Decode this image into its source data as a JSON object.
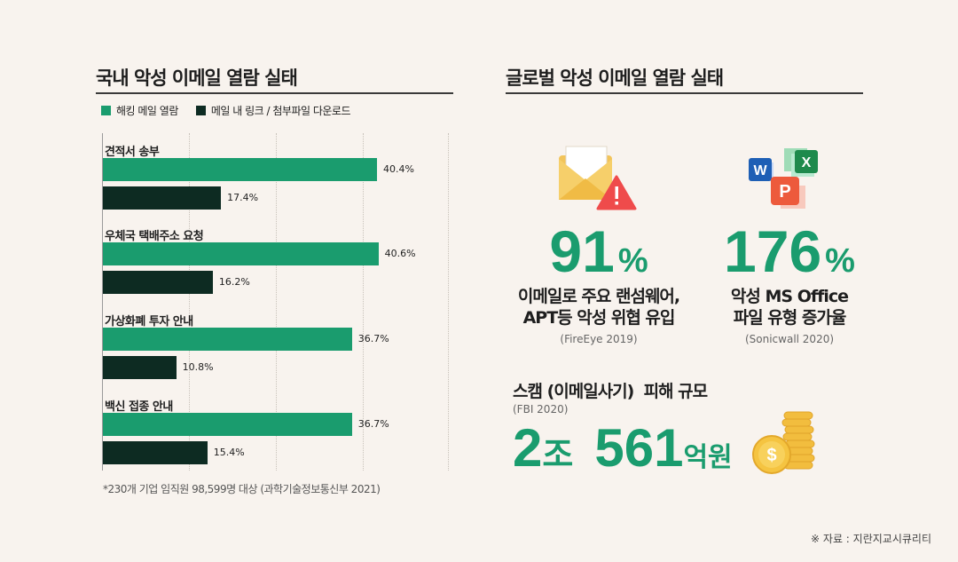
{
  "left": {
    "title": "국내 악성 이메일 열람 실태",
    "footnote": "*230개 기업 임직원 98,599명 대상 (과학기술정보통신부 2021)"
  },
  "right": {
    "title": "글로벌 악성 이메일 열람 실태",
    "stat1": {
      "number": "91",
      "unit": "%",
      "line1": "이메일로 주요 랜섬웨어,",
      "line2": "APT등 악성 위협 유입",
      "source": "(FireEye 2019)"
    },
    "stat2": {
      "number": "176",
      "unit": "%",
      "line1": "악성 MS Office",
      "line2": "파일 유형 증가율",
      "source": "(Sonicwall 2020)"
    },
    "scam": {
      "title": "스캠 (이메일사기)  피해 규모",
      "source": "(FBI 2020)",
      "amount_a": "2",
      "unit_a": "조",
      "amount_b": "561",
      "unit_b": "억원"
    }
  },
  "credit": "※ 자료 : 지란지교시큐리티",
  "icons": {
    "email": "email-warning-icon",
    "office": "office-apps-icon",
    "coins": "coin-stack-icon"
  },
  "chart_data": {
    "type": "bar",
    "orientation": "horizontal",
    "categories": [
      "견적서 송부",
      "우체국 택배주소 요청",
      "가상화폐 투자 안내",
      "백신 접종 안내"
    ],
    "series": [
      {
        "name": "해킹 메일 열람",
        "color": "#1a9c6e",
        "values": [
          40.4,
          40.6,
          36.7,
          36.7
        ]
      },
      {
        "name": "메일 내 링크 / 첨부파일 다운로드",
        "color": "#0d2b22",
        "values": [
          17.4,
          16.2,
          10.8,
          15.4
        ]
      }
    ],
    "value_suffix": "%",
    "legend": "top-left",
    "grid": true
  }
}
